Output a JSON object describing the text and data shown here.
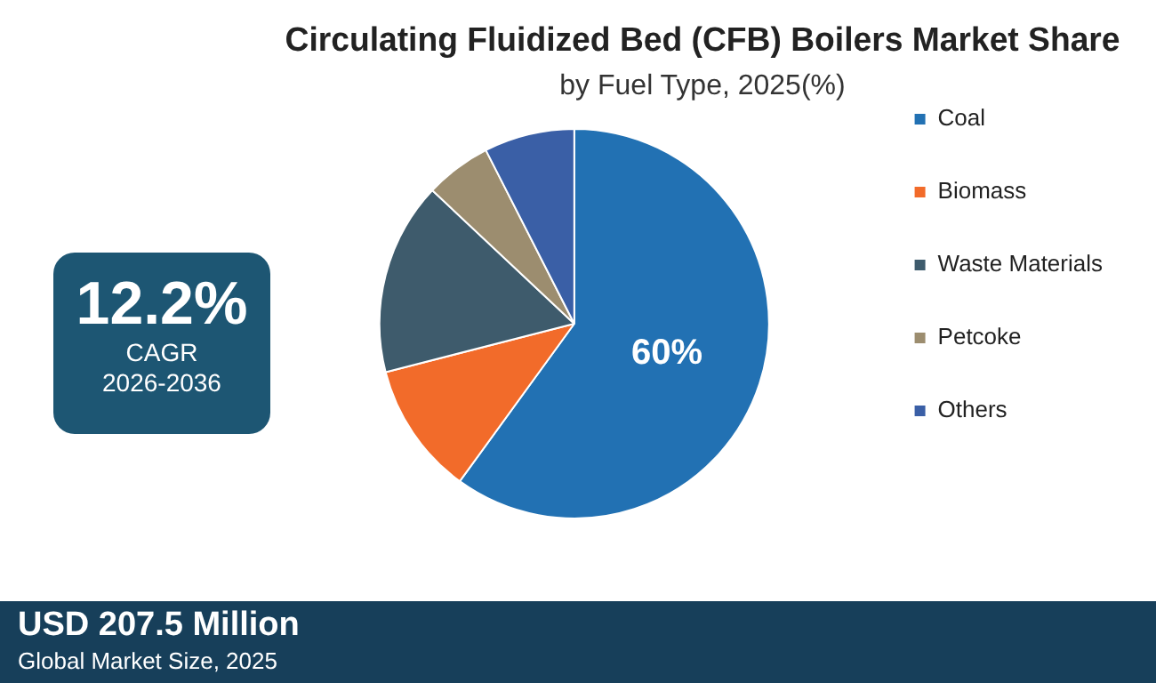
{
  "chart_data": {
    "type": "pie",
    "title": "Circulating Fluidized Bed (CFB) Boilers Market Share",
    "subtitle": "by Fuel Type, 2025(%)",
    "categories": [
      "Coal",
      "Biomass",
      "Waste Materials",
      "Petcoke",
      "Others"
    ],
    "values": [
      60,
      11,
      16,
      5.5,
      7.5
    ],
    "colors": [
      "#2271b3",
      "#f26b2a",
      "#3e5b6c",
      "#9c8d6f",
      "#3a5fa6"
    ],
    "value_labels": [
      "60%",
      null,
      null,
      null,
      null
    ],
    "legend": "right",
    "annotations": [
      "12.2%",
      "CAGR",
      "2026-2036",
      "USD 207.5 Million",
      "Global Market Size, 2025"
    ]
  }
}
